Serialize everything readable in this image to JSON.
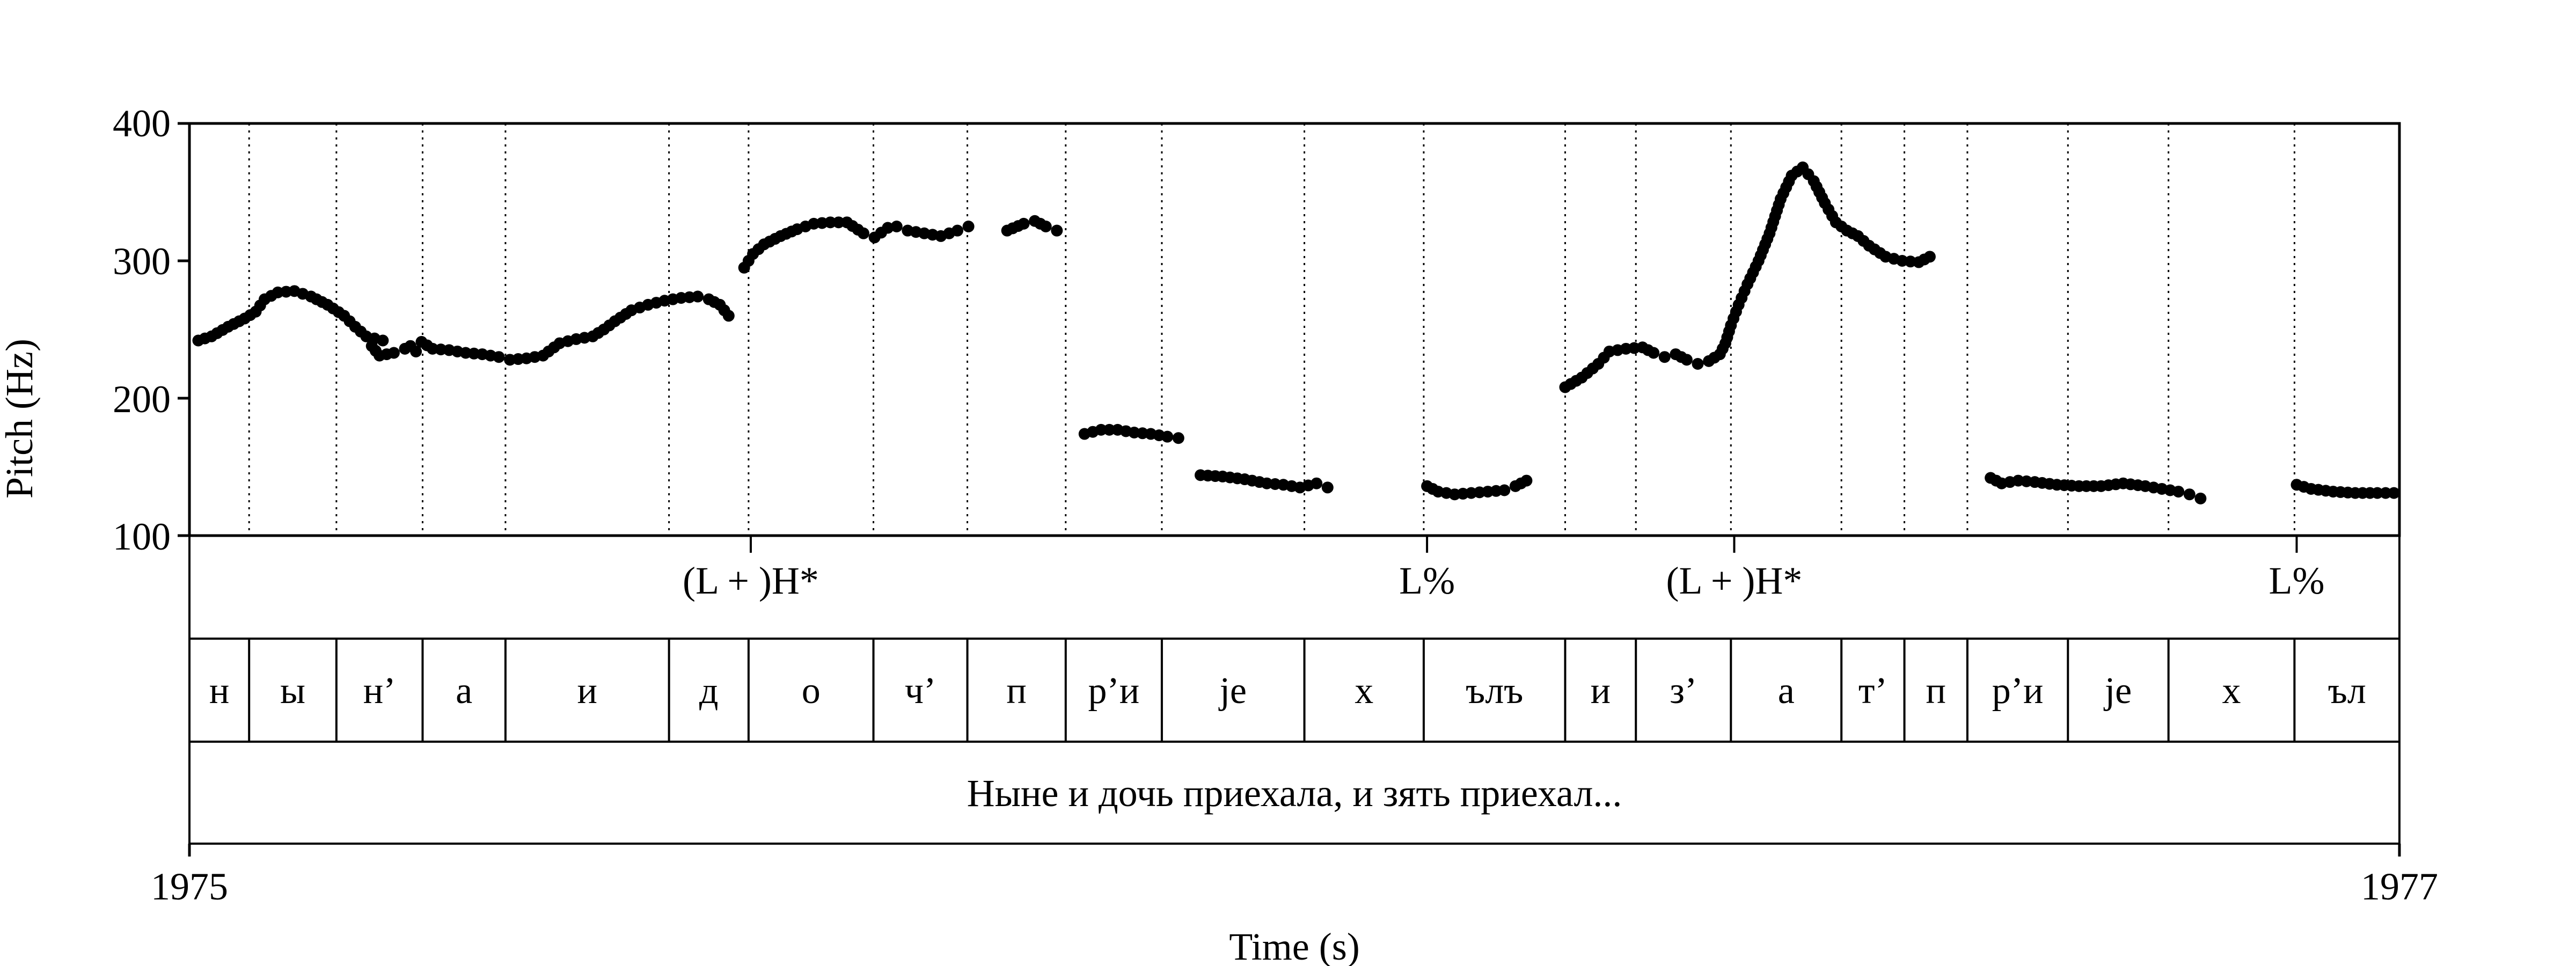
{
  "chart_data": {
    "type": "scatter",
    "ylabel": "Pitch (Hz)",
    "xlabel": "Time (s)",
    "ylim": [
      100,
      400
    ],
    "xlim": [
      0,
      2
    ],
    "y_ticks": [
      "100",
      "200",
      "300",
      "400"
    ],
    "x_tick_left": "1975",
    "x_tick_right": "1977",
    "grid": "vertical dotted lines at segment boundaries",
    "tones": [
      {
        "t": 0.508,
        "label": "(L + )H*"
      },
      {
        "t": 1.12,
        "label": "L%"
      },
      {
        "t": 1.398,
        "label": "(L + )H*"
      },
      {
        "t": 1.907,
        "label": "L%"
      }
    ],
    "boundaries": [
      0,
      0.054,
      0.133,
      0.211,
      0.286,
      0.434,
      0.506,
      0.619,
      0.704,
      0.793,
      0.88,
      1.009,
      1.117,
      1.245,
      1.309,
      1.395,
      1.495,
      1.552,
      1.609,
      1.7,
      1.791,
      1.905,
      2.0
    ],
    "segments": [
      "н",
      "ы",
      "н’",
      "а",
      "и",
      "д",
      "о",
      "ч’",
      "п",
      "р’и",
      "jе",
      "х",
      "ълъ",
      "и",
      "з’",
      "а",
      "т’",
      "п",
      "р’и",
      "jе",
      "х",
      "ъл"
    ],
    "sentence": "Ныне и дочь приехала, и зять приехал...",
    "pitch_contours": [
      [
        [
          0.008,
          242
        ],
        [
          0.02,
          245
        ],
        [
          0.035,
          252
        ],
        [
          0.05,
          258
        ],
        [
          0.06,
          263
        ],
        [
          0.068,
          272
        ],
        [
          0.08,
          277
        ],
        [
          0.095,
          278
        ],
        [
          0.11,
          274
        ],
        [
          0.125,
          268
        ],
        [
          0.14,
          260
        ],
        [
          0.15,
          252
        ],
        [
          0.16,
          245
        ],
        [
          0.175,
          242
        ]
      ],
      [
        [
          0.165,
          238
        ],
        [
          0.172,
          231
        ],
        [
          0.185,
          233
        ],
        [
          0.195,
          236
        ],
        [
          0.2,
          238
        ],
        [
          0.205,
          234
        ],
        [
          0.21,
          241
        ],
        [
          0.22,
          236
        ],
        [
          0.235,
          235
        ],
        [
          0.25,
          233
        ],
        [
          0.265,
          232
        ],
        [
          0.28,
          230
        ],
        [
          0.29,
          228
        ],
        [
          0.305,
          229
        ],
        [
          0.32,
          231
        ],
        [
          0.335,
          240
        ],
        [
          0.35,
          243
        ],
        [
          0.365,
          245
        ],
        [
          0.375,
          250
        ],
        [
          0.385,
          256
        ],
        [
          0.4,
          264
        ],
        [
          0.415,
          268
        ],
        [
          0.43,
          271
        ],
        [
          0.445,
          273
        ],
        [
          0.46,
          274
        ],
        [
          0.47,
          272
        ],
        [
          0.48,
          268
        ],
        [
          0.488,
          260
        ]
      ],
      [
        [
          0.502,
          295
        ],
        [
          0.51,
          305
        ],
        [
          0.52,
          312
        ],
        [
          0.535,
          318
        ],
        [
          0.55,
          323
        ],
        [
          0.565,
          327
        ],
        [
          0.58,
          328
        ],
        [
          0.595,
          328
        ],
        [
          0.61,
          320
        ],
        [
          0.62,
          317
        ],
        [
          0.632,
          324
        ],
        [
          0.64,
          325
        ],
        [
          0.65,
          322
        ],
        [
          0.665,
          320
        ],
        [
          0.68,
          318
        ],
        [
          0.695,
          322
        ],
        [
          0.705,
          325
        ]
      ],
      [
        [
          0.74,
          322
        ],
        [
          0.755,
          327
        ],
        [
          0.765,
          329
        ],
        [
          0.775,
          325
        ],
        [
          0.785,
          322
        ]
      ],
      [
        [
          0.81,
          174
        ],
        [
          0.825,
          177
        ],
        [
          0.84,
          177
        ],
        [
          0.855,
          175
        ],
        [
          0.87,
          174
        ],
        [
          0.885,
          172
        ],
        [
          0.895,
          171
        ]
      ],
      [
        [
          0.915,
          144
        ],
        [
          0.935,
          143
        ],
        [
          0.955,
          141
        ],
        [
          0.975,
          138
        ],
        [
          0.99,
          137
        ],
        [
          1.005,
          135
        ],
        [
          1.02,
          138
        ],
        [
          1.03,
          135
        ]
      ],
      [
        [
          1.12,
          136
        ],
        [
          1.13,
          132
        ],
        [
          1.145,
          130
        ],
        [
          1.16,
          131
        ],
        [
          1.175,
          132
        ],
        [
          1.19,
          133
        ],
        [
          1.2,
          136
        ],
        [
          1.21,
          140
        ]
      ],
      [
        [
          1.245,
          208
        ],
        [
          1.26,
          215
        ],
        [
          1.275,
          225
        ],
        [
          1.285,
          234
        ],
        [
          1.3,
          236
        ],
        [
          1.315,
          237
        ],
        [
          1.325,
          233
        ],
        [
          1.335,
          230
        ],
        [
          1.345,
          232
        ],
        [
          1.355,
          228
        ],
        [
          1.365,
          225
        ],
        [
          1.375,
          227
        ],
        [
          1.385,
          232
        ],
        [
          1.39,
          240
        ],
        [
          1.395,
          253
        ],
        [
          1.402,
          268
        ],
        [
          1.41,
          283
        ],
        [
          1.42,
          300
        ],
        [
          1.43,
          320
        ],
        [
          1.44,
          345
        ],
        [
          1.45,
          362
        ],
        [
          1.46,
          368
        ],
        [
          1.47,
          358
        ],
        [
          1.48,
          342
        ],
        [
          1.49,
          328
        ],
        [
          1.5,
          322
        ],
        [
          1.51,
          318
        ],
        [
          1.52,
          311
        ],
        [
          1.535,
          303
        ],
        [
          1.55,
          300
        ],
        [
          1.565,
          299
        ],
        [
          1.575,
          303
        ]
      ],
      [
        [
          1.63,
          142
        ],
        [
          1.64,
          138
        ],
        [
          1.655,
          140
        ],
        [
          1.67,
          139
        ],
        [
          1.69,
          137
        ],
        [
          1.71,
          136
        ],
        [
          1.73,
          136
        ],
        [
          1.75,
          138
        ],
        [
          1.77,
          136
        ],
        [
          1.785,
          134
        ],
        [
          1.8,
          132
        ],
        [
          1.81,
          130
        ],
        [
          1.82,
          127
        ]
      ],
      [
        [
          1.907,
          137
        ],
        [
          1.92,
          134
        ],
        [
          1.94,
          132
        ],
        [
          1.96,
          131
        ],
        [
          1.98,
          131
        ],
        [
          1.995,
          131
        ]
      ]
    ]
  }
}
